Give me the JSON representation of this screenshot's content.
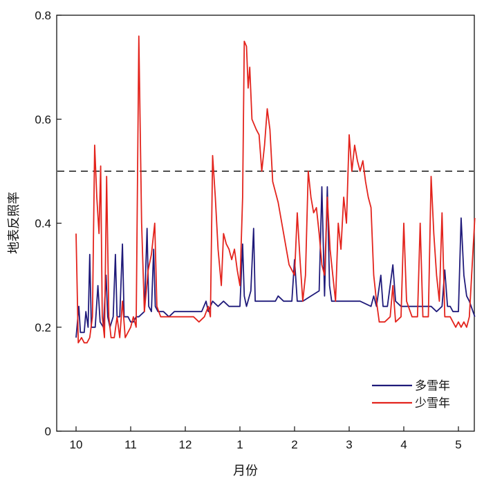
{
  "chart_data": {
    "type": "line",
    "title": "",
    "xlabel": "月份",
    "ylabel": "地表反照率",
    "ylim": [
      0,
      0.8
    ],
    "yticks": [
      "0",
      "0.2",
      "0.4",
      "0.6",
      "0.8"
    ],
    "xticks": [
      "10",
      "11",
      "12",
      "1",
      "2",
      "3",
      "4",
      "5"
    ],
    "xlim": [
      0,
      7.3
    ],
    "grid": false,
    "legend_position": "bottom-right",
    "reference_line": {
      "y": 0.5,
      "style": "dashed"
    },
    "series": [
      {
        "name": "多雪年",
        "color": "#1f1a7a",
        "points": [
          [
            0.0,
            0.18
          ],
          [
            0.05,
            0.24
          ],
          [
            0.08,
            0.19
          ],
          [
            0.15,
            0.19
          ],
          [
            0.18,
            0.23
          ],
          [
            0.22,
            0.2
          ],
          [
            0.25,
            0.34
          ],
          [
            0.28,
            0.2
          ],
          [
            0.35,
            0.2
          ],
          [
            0.4,
            0.28
          ],
          [
            0.44,
            0.21
          ],
          [
            0.5,
            0.2
          ],
          [
            0.55,
            0.3
          ],
          [
            0.58,
            0.22
          ],
          [
            0.62,
            0.2
          ],
          [
            0.68,
            0.22
          ],
          [
            0.72,
            0.34
          ],
          [
            0.75,
            0.22
          ],
          [
            0.8,
            0.22
          ],
          [
            0.85,
            0.36
          ],
          [
            0.88,
            0.22
          ],
          [
            0.95,
            0.22
          ],
          [
            1.0,
            0.21
          ],
          [
            1.05,
            0.21
          ],
          [
            1.1,
            0.22
          ],
          [
            1.15,
            0.22
          ],
          [
            1.25,
            0.23
          ],
          [
            1.3,
            0.39
          ],
          [
            1.33,
            0.24
          ],
          [
            1.38,
            0.23
          ],
          [
            1.42,
            0.35
          ],
          [
            1.45,
            0.24
          ],
          [
            1.5,
            0.23
          ],
          [
            1.6,
            0.23
          ],
          [
            1.7,
            0.22
          ],
          [
            1.8,
            0.23
          ],
          [
            1.9,
            0.23
          ],
          [
            2.0,
            0.23
          ],
          [
            2.1,
            0.23
          ],
          [
            2.2,
            0.23
          ],
          [
            2.3,
            0.23
          ],
          [
            2.38,
            0.25
          ],
          [
            2.42,
            0.23
          ],
          [
            2.5,
            0.25
          ],
          [
            2.6,
            0.24
          ],
          [
            2.7,
            0.25
          ],
          [
            2.8,
            0.24
          ],
          [
            2.9,
            0.24
          ],
          [
            3.0,
            0.24
          ],
          [
            3.05,
            0.36
          ],
          [
            3.08,
            0.26
          ],
          [
            3.12,
            0.24
          ],
          [
            3.2,
            0.27
          ],
          [
            3.25,
            0.39
          ],
          [
            3.28,
            0.25
          ],
          [
            3.35,
            0.25
          ],
          [
            3.5,
            0.25
          ],
          [
            3.65,
            0.25
          ],
          [
            3.7,
            0.26
          ],
          [
            3.8,
            0.25
          ],
          [
            3.95,
            0.25
          ],
          [
            4.0,
            0.33
          ],
          [
            4.05,
            0.25
          ],
          [
            4.15,
            0.25
          ],
          [
            4.3,
            0.26
          ],
          [
            4.45,
            0.27
          ],
          [
            4.5,
            0.47
          ],
          [
            4.55,
            0.26
          ],
          [
            4.6,
            0.47
          ],
          [
            4.64,
            0.28
          ],
          [
            4.68,
            0.25
          ],
          [
            4.8,
            0.25
          ],
          [
            5.0,
            0.25
          ],
          [
            5.2,
            0.25
          ],
          [
            5.4,
            0.24
          ],
          [
            5.45,
            0.26
          ],
          [
            5.5,
            0.24
          ],
          [
            5.58,
            0.3
          ],
          [
            5.62,
            0.24
          ],
          [
            5.7,
            0.24
          ],
          [
            5.8,
            0.32
          ],
          [
            5.85,
            0.25
          ],
          [
            5.95,
            0.24
          ],
          [
            6.2,
            0.24
          ],
          [
            6.3,
            0.24
          ],
          [
            6.4,
            0.24
          ],
          [
            6.5,
            0.24
          ],
          [
            6.6,
            0.23
          ],
          [
            6.7,
            0.24
          ],
          [
            6.75,
            0.31
          ],
          [
            6.8,
            0.24
          ],
          [
            6.85,
            0.24
          ],
          [
            6.9,
            0.23
          ],
          [
            7.0,
            0.23
          ],
          [
            7.05,
            0.41
          ],
          [
            7.1,
            0.3
          ],
          [
            7.15,
            0.26
          ],
          [
            7.2,
            0.25
          ],
          [
            7.3,
            0.22
          ]
        ]
      },
      {
        "name": "少雪年",
        "color": "#e3231c",
        "points": [
          [
            0.0,
            0.38
          ],
          [
            0.04,
            0.17
          ],
          [
            0.1,
            0.18
          ],
          [
            0.15,
            0.17
          ],
          [
            0.2,
            0.17
          ],
          [
            0.25,
            0.18
          ],
          [
            0.3,
            0.22
          ],
          [
            0.34,
            0.55
          ],
          [
            0.38,
            0.45
          ],
          [
            0.42,
            0.38
          ],
          [
            0.45,
            0.51
          ],
          [
            0.48,
            0.22
          ],
          [
            0.52,
            0.18
          ],
          [
            0.56,
            0.49
          ],
          [
            0.6,
            0.22
          ],
          [
            0.64,
            0.18
          ],
          [
            0.7,
            0.18
          ],
          [
            0.75,
            0.22
          ],
          [
            0.8,
            0.18
          ],
          [
            0.85,
            0.25
          ],
          [
            0.9,
            0.18
          ],
          [
            1.0,
            0.2
          ],
          [
            1.05,
            0.22
          ],
          [
            1.1,
            0.2
          ],
          [
            1.15,
            0.76
          ],
          [
            1.2,
            0.4
          ],
          [
            1.25,
            0.23
          ],
          [
            1.32,
            0.31
          ],
          [
            1.38,
            0.34
          ],
          [
            1.44,
            0.4
          ],
          [
            1.48,
            0.24
          ],
          [
            1.55,
            0.22
          ],
          [
            1.7,
            0.22
          ],
          [
            1.85,
            0.22
          ],
          [
            2.0,
            0.22
          ],
          [
            2.15,
            0.22
          ],
          [
            2.25,
            0.21
          ],
          [
            2.35,
            0.22
          ],
          [
            2.42,
            0.24
          ],
          [
            2.46,
            0.22
          ],
          [
            2.5,
            0.53
          ],
          [
            2.55,
            0.45
          ],
          [
            2.6,
            0.35
          ],
          [
            2.66,
            0.28
          ],
          [
            2.7,
            0.38
          ],
          [
            2.75,
            0.36
          ],
          [
            2.8,
            0.35
          ],
          [
            2.85,
            0.33
          ],
          [
            2.9,
            0.35
          ],
          [
            2.95,
            0.31
          ],
          [
            3.0,
            0.28
          ],
          [
            3.05,
            0.45
          ],
          [
            3.08,
            0.75
          ],
          [
            3.12,
            0.74
          ],
          [
            3.15,
            0.66
          ],
          [
            3.18,
            0.7
          ],
          [
            3.22,
            0.6
          ],
          [
            3.3,
            0.58
          ],
          [
            3.35,
            0.57
          ],
          [
            3.4,
            0.5
          ],
          [
            3.45,
            0.55
          ],
          [
            3.5,
            0.62
          ],
          [
            3.55,
            0.58
          ],
          [
            3.6,
            0.48
          ],
          [
            3.7,
            0.44
          ],
          [
            3.8,
            0.38
          ],
          [
            3.9,
            0.32
          ],
          [
            4.0,
            0.3
          ],
          [
            4.05,
            0.42
          ],
          [
            4.1,
            0.33
          ],
          [
            4.15,
            0.25
          ],
          [
            4.2,
            0.3
          ],
          [
            4.25,
            0.5
          ],
          [
            4.3,
            0.45
          ],
          [
            4.35,
            0.42
          ],
          [
            4.4,
            0.43
          ],
          [
            4.45,
            0.38
          ],
          [
            4.5,
            0.32
          ],
          [
            4.55,
            0.3
          ],
          [
            4.6,
            0.45
          ],
          [
            4.65,
            0.35
          ],
          [
            4.7,
            0.3
          ],
          [
            4.75,
            0.25
          ],
          [
            4.8,
            0.4
          ],
          [
            4.85,
            0.35
          ],
          [
            4.9,
            0.45
          ],
          [
            4.95,
            0.4
          ],
          [
            5.0,
            0.57
          ],
          [
            5.05,
            0.5
          ],
          [
            5.1,
            0.55
          ],
          [
            5.15,
            0.52
          ],
          [
            5.2,
            0.5
          ],
          [
            5.25,
            0.52
          ],
          [
            5.3,
            0.48
          ],
          [
            5.35,
            0.45
          ],
          [
            5.4,
            0.43
          ],
          [
            5.45,
            0.3
          ],
          [
            5.5,
            0.25
          ],
          [
            5.55,
            0.21
          ],
          [
            5.65,
            0.21
          ],
          [
            5.75,
            0.22
          ],
          [
            5.8,
            0.28
          ],
          [
            5.85,
            0.21
          ],
          [
            5.95,
            0.22
          ],
          [
            6.0,
            0.4
          ],
          [
            6.05,
            0.25
          ],
          [
            6.15,
            0.22
          ],
          [
            6.25,
            0.22
          ],
          [
            6.3,
            0.4
          ],
          [
            6.35,
            0.22
          ],
          [
            6.45,
            0.22
          ],
          [
            6.5,
            0.49
          ],
          [
            6.55,
            0.38
          ],
          [
            6.6,
            0.3
          ],
          [
            6.65,
            0.25
          ],
          [
            6.7,
            0.42
          ],
          [
            6.75,
            0.22
          ],
          [
            6.85,
            0.22
          ],
          [
            6.95,
            0.2
          ],
          [
            7.0,
            0.21
          ],
          [
            7.05,
            0.2
          ],
          [
            7.1,
            0.21
          ],
          [
            7.15,
            0.2
          ],
          [
            7.2,
            0.22
          ],
          [
            7.3,
            0.41
          ]
        ]
      }
    ]
  }
}
